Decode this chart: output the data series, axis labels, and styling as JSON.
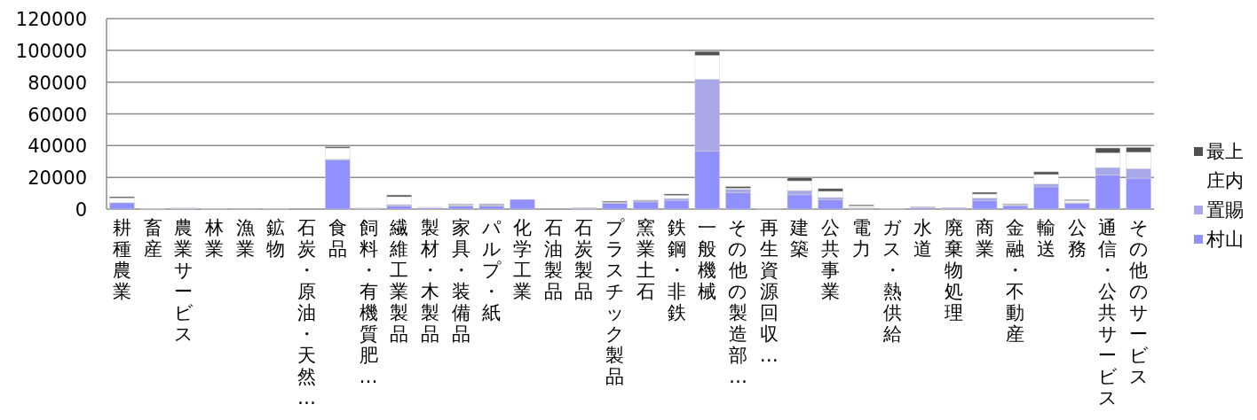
{
  "chart_data": {
    "type": "bar",
    "stacked": true,
    "categories": [
      "耕種農業",
      "畜産",
      "農業サービス",
      "林業",
      "漁業",
      "鉱物",
      "石炭・原油・天然…",
      "食品",
      "飼料・有機質肥…",
      "繊維工業製品",
      "製材・木製品",
      "家具・装備品",
      "パルプ・紙",
      "化学工業",
      "石油製品",
      "石炭製品",
      "プラスチック製品",
      "窯業土石",
      "鉄鋼・非鉄",
      "一般機械",
      "その他の製造部…",
      "再生資源回収…",
      "建築",
      "公共事業",
      "電力",
      "ガス・熱供給",
      "水道",
      "廃棄物処理",
      "商業",
      "金融・不動産",
      "輸送",
      "公務",
      "通信・公共サービス",
      "その他のサービス"
    ],
    "series": [
      {
        "name": "村山",
        "color": "#9090ff",
        "values": [
          4000,
          300,
          400,
          200,
          100,
          200,
          0,
          31000,
          400,
          2000,
          800,
          2000,
          2000,
          6100,
          0,
          500,
          3500,
          4500,
          5500,
          36500,
          10500,
          300,
          9000,
          5800,
          500,
          200,
          800,
          600,
          5500,
          2200,
          14000,
          3500,
          21500,
          19500
        ]
      },
      {
        "name": "置賜",
        "color": "#a8a8e8",
        "values": [
          null,
          200,
          300,
          0,
          0,
          0,
          0,
          500,
          300,
          800,
          null,
          700,
          800,
          0,
          0,
          300,
          500,
          800,
          1200,
          45400,
          2000,
          0,
          2700,
          1500,
          300,
          0,
          400,
          400,
          1400,
          500,
          1800,
          500,
          4700,
          6000
        ]
      },
      {
        "name": "庄内",
        "color": "#ffffff",
        "values": [
          3000,
          0,
          0,
          0,
          0,
          0,
          0,
          7000,
          0,
          5000,
          400,
          400,
          300,
          0,
          0,
          0,
          400,
          0,
          2000,
          14900,
          700,
          0,
          6100,
          3900,
          1200,
          0,
          0,
          0,
          2600,
          300,
          6000,
          1400,
          9200,
          10300
        ]
      },
      {
        "name": "最上",
        "color": "#505050",
        "values": [
          800,
          0,
          0,
          0,
          0,
          0,
          0,
          800,
          0,
          1100,
          null,
          200,
          200,
          0,
          0,
          null,
          600,
          300,
          800,
          2500,
          1000,
          0,
          2000,
          1700,
          700,
          0,
          300,
          0,
          1100,
          300,
          1700,
          500,
          3100,
          3100
        ]
      }
    ],
    "ylim": [
      0,
      120000
    ],
    "yticks": [
      0,
      20000,
      40000,
      60000,
      80000,
      100000,
      120000
    ],
    "grid": "y",
    "legend": "right"
  }
}
